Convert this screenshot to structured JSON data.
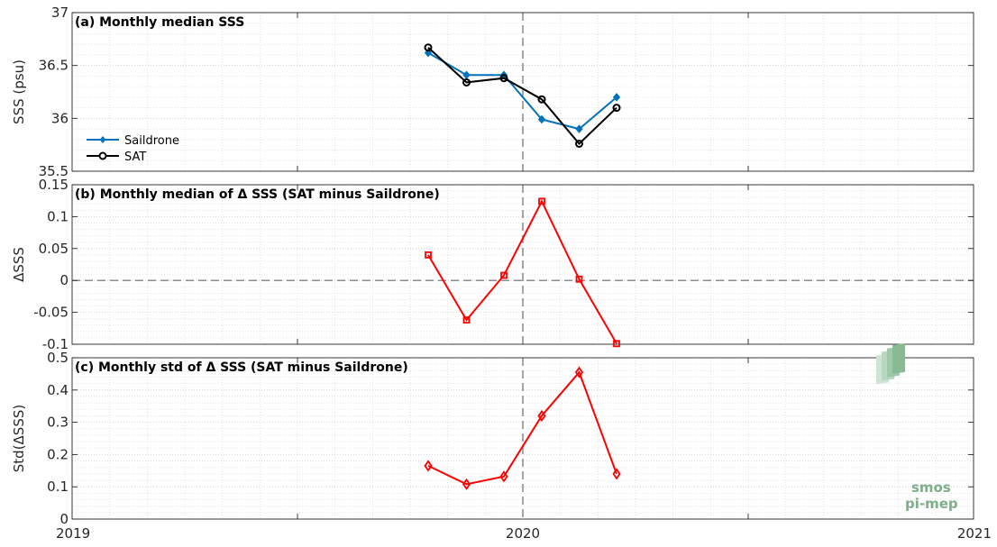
{
  "figure": {
    "x_tick_labels": [
      "2019",
      "2020",
      "2021"
    ],
    "x_range": [
      2019,
      2021
    ],
    "logo": {
      "line1": "smos",
      "line2": "pi-mep"
    }
  },
  "chart_data": [
    {
      "type": "line",
      "title": "(a) Monthly median SSS",
      "ylabel": "SSS (psu)",
      "ylim": [
        35.5,
        37
      ],
      "yticks": [
        35.5,
        36,
        36.5,
        37
      ],
      "ytick_labels": [
        "35.5",
        "36",
        "36.5",
        "37"
      ],
      "grid": true,
      "legend_position": "left",
      "x": [
        2019.79,
        2019.875,
        2019.958,
        2020.042,
        2020.125,
        2020.208
      ],
      "series": [
        {
          "name": "Saildrone",
          "color": "#0072bd",
          "marker": "diamond-filled",
          "values": [
            36.62,
            36.41,
            36.41,
            35.99,
            35.9,
            36.2
          ]
        },
        {
          "name": "SAT",
          "color": "#000000",
          "marker": "circle",
          "values": [
            36.67,
            36.34,
            36.38,
            36.18,
            35.76,
            36.1
          ]
        }
      ]
    },
    {
      "type": "line",
      "title": "(b) Monthly median of Δ SSS (SAT minus Saildrone)",
      "ylabel": "ΔSSS",
      "ylim": [
        -0.1,
        0.15
      ],
      "yticks": [
        -0.1,
        -0.05,
        0,
        0.05,
        0.1,
        0.15
      ],
      "ytick_labels": [
        "-0.1",
        "-0.05",
        "0",
        "0.05",
        "0.1",
        "0.15"
      ],
      "grid": true,
      "zero_line": true,
      "x": [
        2019.79,
        2019.875,
        2019.958,
        2020.042,
        2020.125,
        2020.208
      ],
      "series": [
        {
          "color": "#ff0000",
          "marker": "square",
          "values": [
            0.04,
            -0.062,
            0.008,
            0.124,
            0.002,
            -0.099
          ]
        }
      ]
    },
    {
      "type": "line",
      "title": "(c) Monthly std of Δ SSS (SAT minus Saildrone)",
      "ylabel": "Std(ΔSSS)",
      "ylim": [
        0,
        0.5
      ],
      "yticks": [
        0,
        0.1,
        0.2,
        0.3,
        0.4,
        0.5
      ],
      "ytick_labels": [
        "0",
        "0.1",
        "0.2",
        "0.3",
        "0.4",
        "0.5"
      ],
      "grid": true,
      "x": [
        2019.79,
        2019.875,
        2019.958,
        2020.042,
        2020.125,
        2020.208
      ],
      "series": [
        {
          "color": "#ff0000",
          "marker": "diamond",
          "values": [
            0.165,
            0.108,
            0.132,
            0.32,
            0.455,
            0.14
          ]
        }
      ]
    }
  ]
}
